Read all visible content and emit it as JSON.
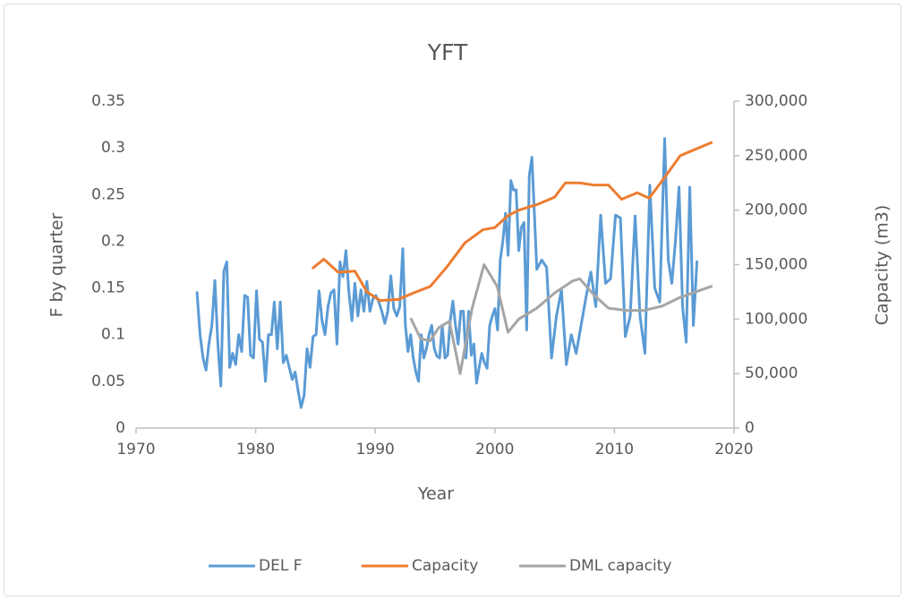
{
  "chart_data": {
    "type": "line",
    "title": "YFT",
    "xlabel": "Year",
    "ylabel": "F by quarter",
    "y2label": "Capacity (m3)",
    "xlim": [
      1970,
      2020
    ],
    "xticks": [
      1970,
      1980,
      1990,
      2000,
      2010,
      2020
    ],
    "ylim": [
      0,
      0.35
    ],
    "yticks": [
      0,
      0.05,
      0.1,
      0.15,
      0.2,
      0.25,
      0.3,
      0.35
    ],
    "y2lim": [
      0,
      300000
    ],
    "y2ticks": [
      0,
      {
        "value": 50000,
        "label": "50,000"
      },
      {
        "value": 100000,
        "label": "100,000"
      },
      {
        "value": 150000,
        "label": "150,000"
      },
      {
        "value": 200000,
        "label": "200,000"
      },
      {
        "value": 250000,
        "label": "250,000"
      },
      {
        "value": 300000,
        "label": "300,000"
      }
    ],
    "grid": false,
    "legend": "bottom",
    "series": [
      {
        "name": "DEL F",
        "color": "#5b9bd5",
        "x": [
          1975.1,
          1975.35,
          1975.6,
          1975.85,
          1976.09,
          1976.34,
          1976.59,
          1976.84,
          1977.09,
          1977.34,
          1977.59,
          1977.83,
          1978.08,
          1978.33,
          1978.58,
          1978.83,
          1979.08,
          1979.33,
          1979.57,
          1979.82,
          1980.07,
          1980.32,
          1980.57,
          1980.82,
          1981.07,
          1981.32,
          1981.56,
          1981.81,
          1982.06,
          1982.31,
          1982.56,
          1982.81,
          1983.06,
          1983.3,
          1983.55,
          1983.8,
          1984.05,
          1984.3,
          1984.55,
          1984.8,
          1985.05,
          1985.3,
          1985.55,
          1985.8,
          1986.05,
          1986.3,
          1986.55,
          1986.8,
          1987.05,
          1987.3,
          1987.55,
          1987.8,
          1988.05,
          1988.3,
          1988.55,
          1988.8,
          1989.05,
          1989.3,
          1989.55,
          1989.8,
          1990.05,
          1990.3,
          1990.55,
          1990.8,
          1991.05,
          1991.3,
          1991.55,
          1991.8,
          1992.05,
          1992.3,
          1992.52,
          1992.74,
          1992.96,
          1993.18,
          1993.4,
          1993.62,
          1993.84,
          1994.06,
          1994.28,
          1994.5,
          1994.72,
          1994.94,
          1995.16,
          1995.38,
          1995.6,
          1995.83,
          1996.05,
          1996.27,
          1996.49,
          1996.71,
          1996.93,
          1997.15,
          1997.37,
          1997.59,
          1997.81,
          1998.03,
          1998.25,
          1998.47,
          1998.69,
          1998.91,
          1999.13,
          1999.35,
          1999.57,
          1999.79,
          2000.01,
          2000.23,
          2000.45,
          2000.67,
          2000.89,
          2001.11,
          2001.34,
          2001.56,
          2001.78,
          2002.0,
          2002.22,
          2002.44,
          2002.66,
          2002.88,
          2003.1,
          2003.51,
          2003.92,
          2004.33,
          2004.74,
          2005.15,
          2005.57,
          2005.98,
          2006.39,
          2006.8,
          2007.21,
          2007.62,
          2008.03,
          2008.44,
          2008.85,
          2009.26,
          2009.68,
          2010.09,
          2010.5,
          2010.91,
          2011.32,
          2011.73,
          2012.14,
          2012.55,
          2012.96,
          2013.37,
          2013.79,
          2014.2,
          2014.5,
          2014.8,
          2015.1,
          2015.4,
          2015.7,
          2016.0,
          2016.3,
          2016.6,
          2016.9
        ],
        "values": [
          0.145,
          0.1,
          0.075,
          0.062,
          0.09,
          0.11,
          0.158,
          0.09,
          0.045,
          0.168,
          0.178,
          0.065,
          0.08,
          0.068,
          0.1,
          0.082,
          0.142,
          0.14,
          0.078,
          0.075,
          0.147,
          0.095,
          0.092,
          0.05,
          0.1,
          0.1,
          0.135,
          0.085,
          0.135,
          0.07,
          0.078,
          0.065,
          0.052,
          0.06,
          0.04,
          0.022,
          0.035,
          0.085,
          0.065,
          0.098,
          0.1,
          0.147,
          0.115,
          0.1,
          0.13,
          0.145,
          0.148,
          0.09,
          0.178,
          0.162,
          0.19,
          0.145,
          0.115,
          0.155,
          0.12,
          0.148,
          0.125,
          0.157,
          0.125,
          0.138,
          0.142,
          0.135,
          0.125,
          0.112,
          0.125,
          0.163,
          0.128,
          0.12,
          0.13,
          0.192,
          0.11,
          0.082,
          0.1,
          0.075,
          0.06,
          0.05,
          0.1,
          0.075,
          0.085,
          0.1,
          0.11,
          0.085,
          0.077,
          0.075,
          0.11,
          0.075,
          0.078,
          0.115,
          0.136,
          0.11,
          0.09,
          0.125,
          0.125,
          0.075,
          0.125,
          0.078,
          0.09,
          0.048,
          0.065,
          0.08,
          0.07,
          0.064,
          0.11,
          0.12,
          0.128,
          0.105,
          0.18,
          0.2,
          0.23,
          0.185,
          0.265,
          0.255,
          0.255,
          0.19,
          0.215,
          0.22,
          0.105,
          0.27,
          0.29,
          0.17,
          0.18,
          0.172,
          0.075,
          0.12,
          0.148,
          0.068,
          0.1,
          0.08,
          0.11,
          0.14,
          0.167,
          0.13,
          0.228,
          0.155,
          0.16,
          0.228,
          0.225,
          0.098,
          0.12,
          0.227,
          0.12,
          0.08,
          0.26,
          0.15,
          0.135,
          0.31,
          0.18,
          0.155,
          0.2,
          0.258,
          0.13,
          0.092,
          0.258,
          0.11,
          0.178
        ]
      },
      {
        "name": "Capacity",
        "color": "#ed7d31",
        "axis": "y2",
        "x": [
          1984.8,
          1985.7,
          1986.9,
          1988.3,
          1989.3,
          1990.4,
          1991.9,
          1993.2,
          1994.6,
          1996.0,
          1997.5,
          1999.0,
          2000.0,
          2001.1,
          2002.0,
          2003.5,
          2005.0,
          2005.9,
          2007.1,
          2008.3,
          2009.5,
          2010.6,
          2011.9,
          2012.9,
          2014.2,
          2015.5,
          2018.1
        ],
        "values": [
          147000,
          155000,
          143000,
          144000,
          125000,
          117000,
          118000,
          124000,
          130000,
          148000,
          170000,
          182000,
          184000,
          195000,
          200000,
          205000,
          212000,
          225000,
          225000,
          223000,
          223000,
          210000,
          216000,
          211000,
          230000,
          250000,
          262000
        ]
      },
      {
        "name": "DML capacity",
        "color": "#a5a5a5",
        "axis": "y2",
        "x": [
          1993.0,
          1993.8,
          1994.6,
          1995.3,
          1996.2,
          1997.1,
          1998.1,
          1999.1,
          2000.2,
          2001.1,
          2002.0,
          2003.5,
          2005.0,
          2006.5,
          2007.1,
          2008.3,
          2009.5,
          2011.0,
          2012.5,
          2014.0,
          2015.5,
          2018.1
        ],
        "values": [
          100000,
          82000,
          80000,
          92000,
          98000,
          50000,
          110000,
          150000,
          130000,
          88000,
          100000,
          110000,
          124000,
          135000,
          137000,
          122000,
          110000,
          108000,
          108000,
          112000,
          120000,
          130000
        ]
      }
    ]
  }
}
